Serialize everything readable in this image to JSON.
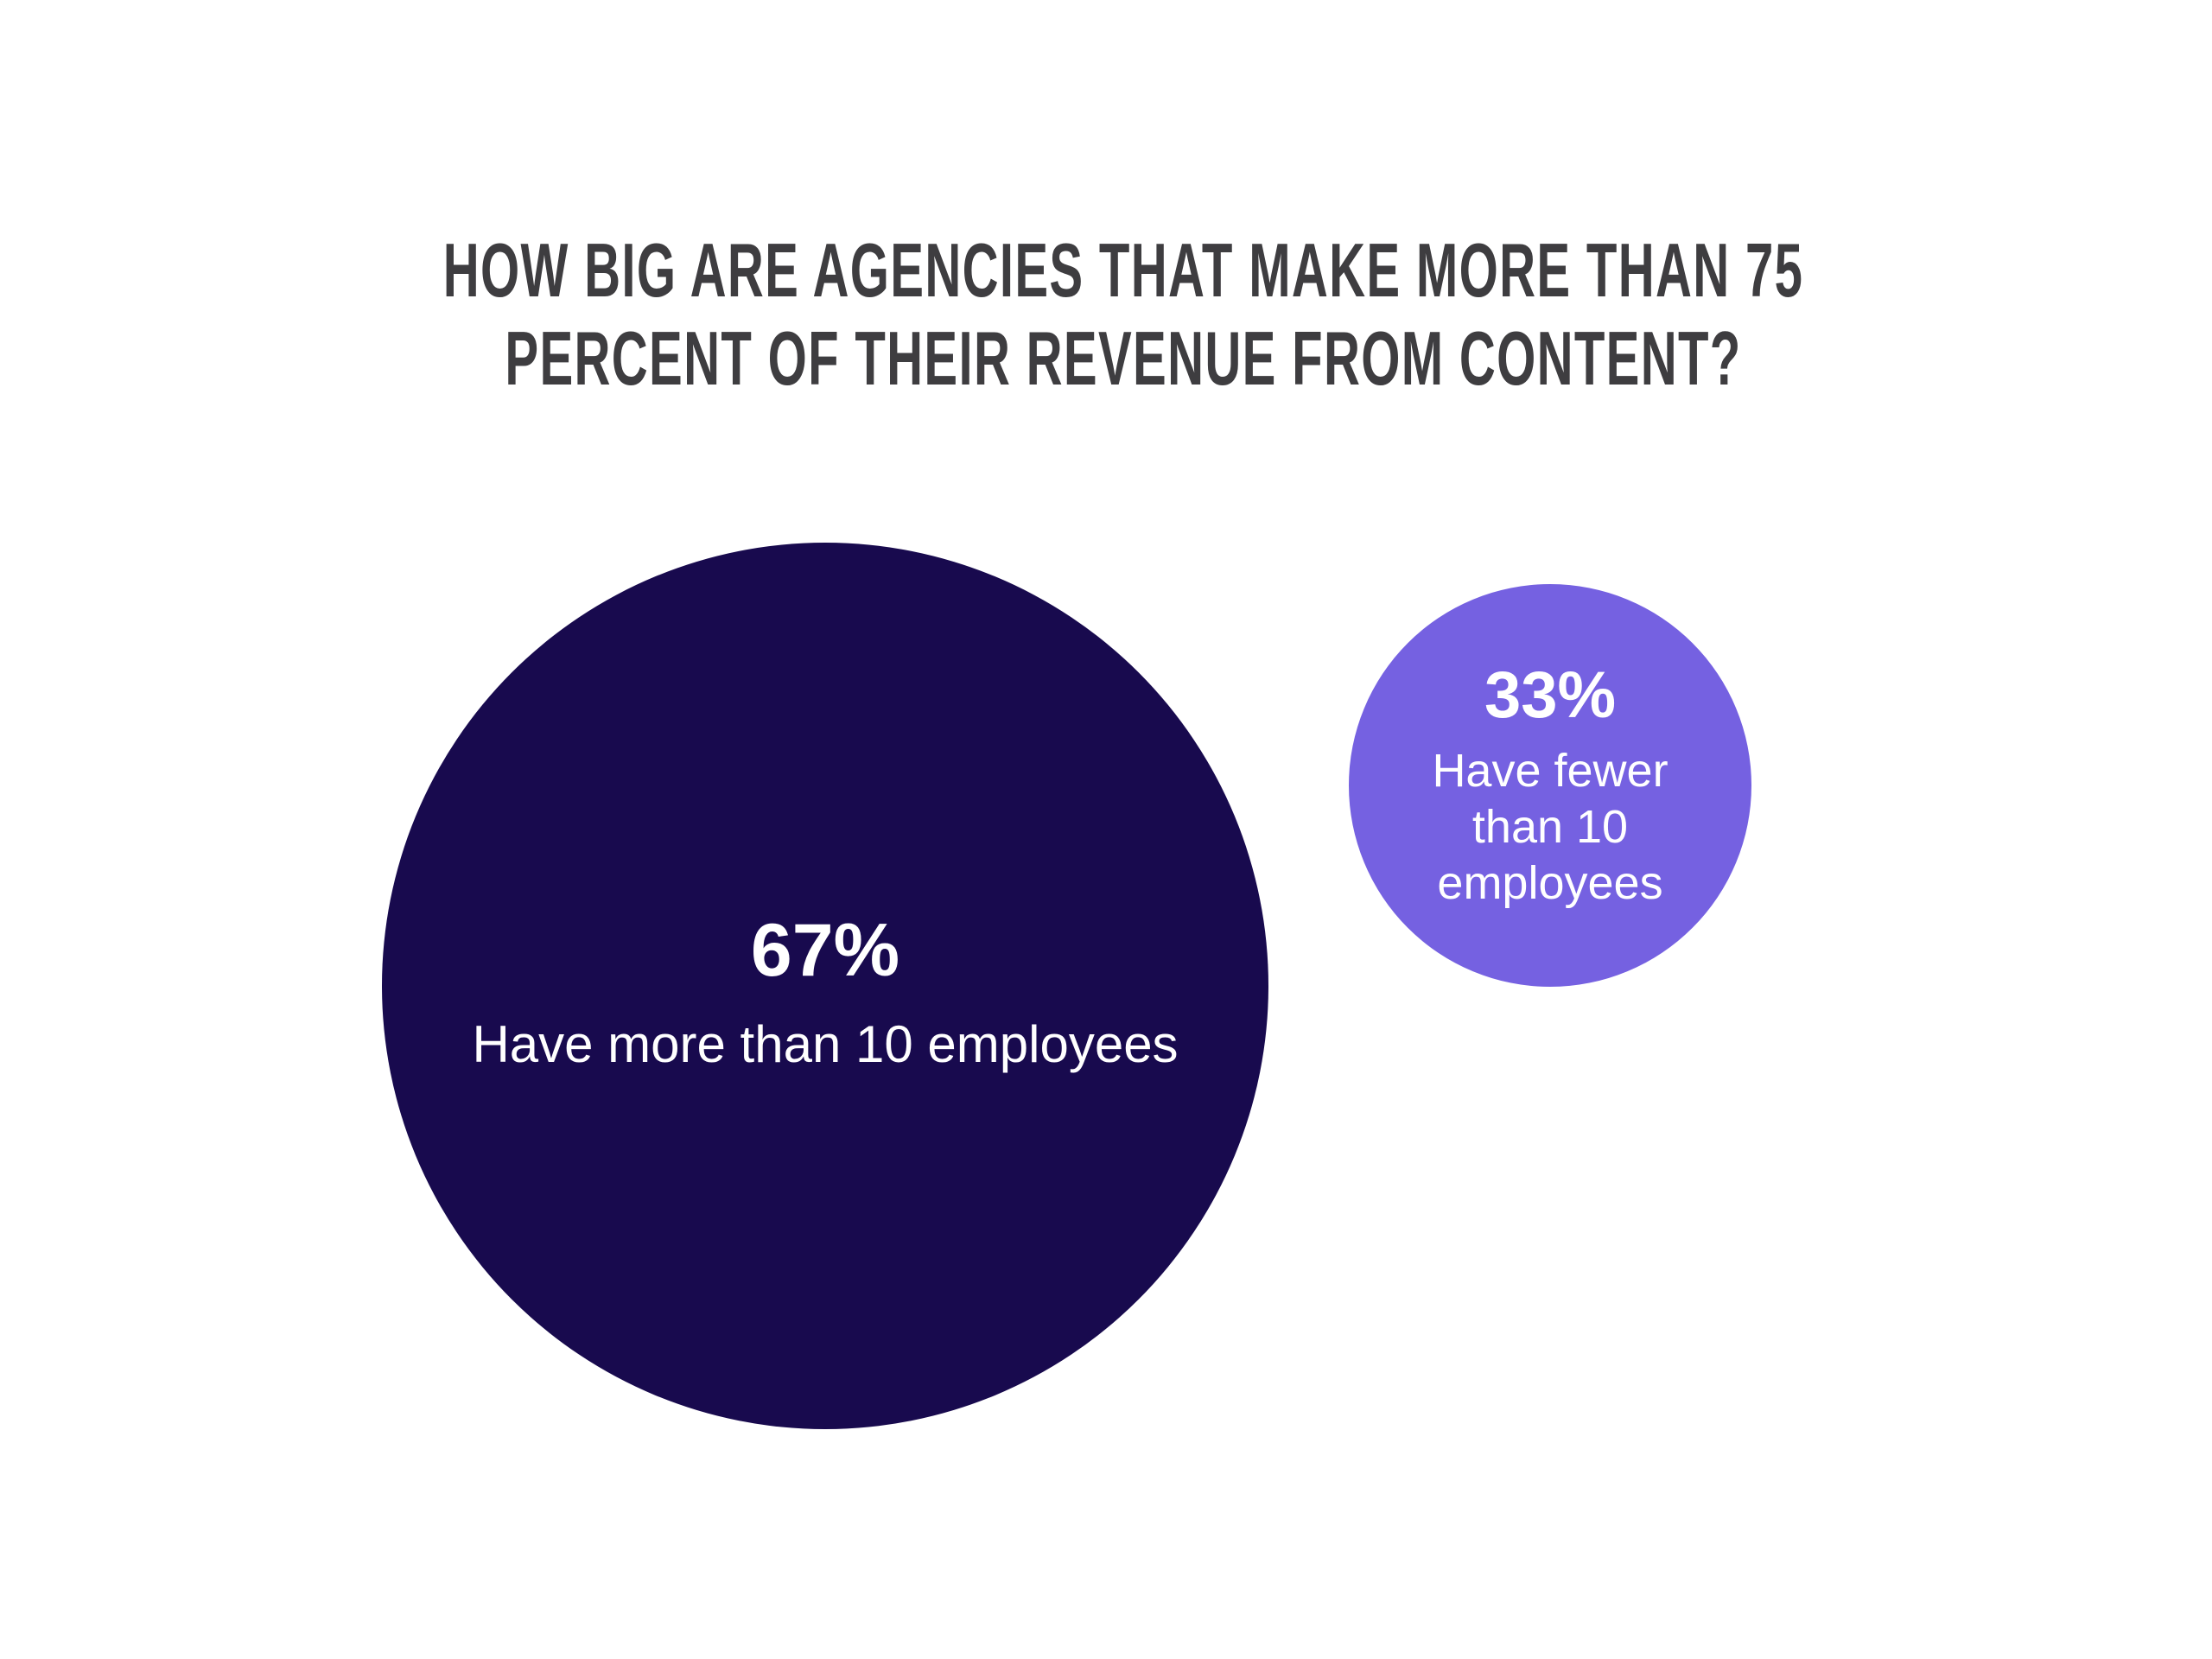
{
  "page": {
    "background_color": "#ffffff"
  },
  "title": {
    "text": "HOW BIG ARE AGENCIES THAT MAKE MORE THAN 75 PERCENT OF THEIR REVENUE FROM CONTENT?",
    "line1": "HOW BIG ARE AGENCIES THAT MAKE MORE THAN 75",
    "line2": "PERCENT OF THEIR REVENUE FROM CONTENT?",
    "color": "#3e3d40"
  },
  "bubbles": {
    "large": {
      "value": "67%",
      "label": "Have more than 10 employees",
      "color": "#180a4e",
      "text_color": "#ffffff"
    },
    "small": {
      "value": "33%",
      "label": "Have fewer than 10 employees",
      "label_lines": [
        "Have fewer",
        "than 10",
        "employees"
      ],
      "color": "#7561e1",
      "text_color": "#ffffff"
    }
  },
  "chart_data": {
    "type": "pie",
    "variant": "proportional-bubbles",
    "title": "HOW BIG ARE AGENCIES THAT MAKE MORE THAN 75 PERCENT OF THEIR REVENUE FROM CONTENT?",
    "categories": [
      "Have more than 10 employees",
      "Have fewer than 10 employees"
    ],
    "values": [
      67,
      33
    ],
    "unit": "%",
    "colors": [
      "#180a4e",
      "#7561e1"
    ],
    "legend": "none",
    "data_labels": "inside",
    "background": "#ffffff"
  }
}
